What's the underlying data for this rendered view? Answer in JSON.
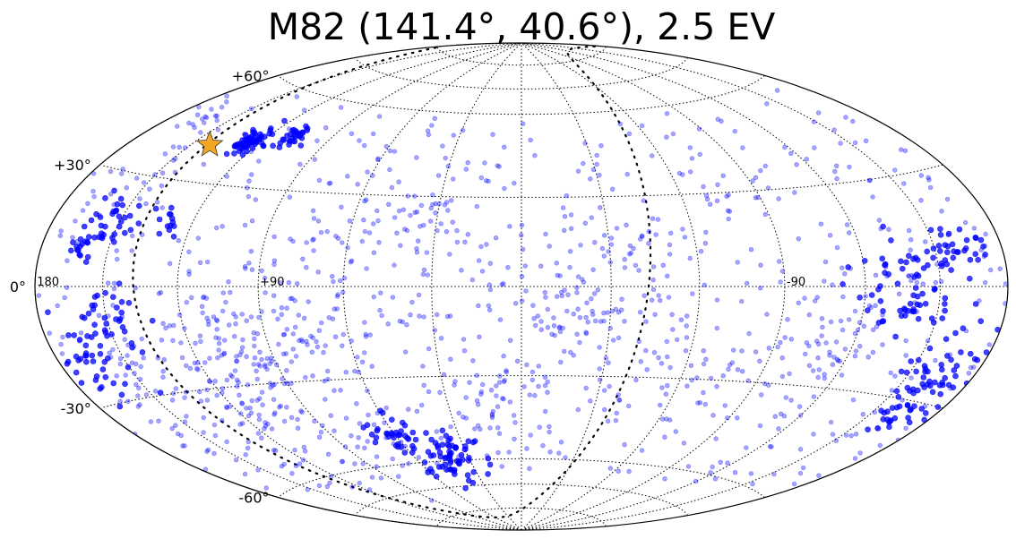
{
  "chart_data": {
    "type": "scatter",
    "projection": "hammer-aitoff (all-sky)",
    "title": "M82 (141.4°, 40.6°), 2.5 EV",
    "grid": true,
    "lat_tick_labels": [
      {
        "value": 60,
        "label": "+60°"
      },
      {
        "value": 30,
        "label": "+30°"
      },
      {
        "value": 0,
        "label": "0°"
      },
      {
        "value": -30,
        "label": "-30°"
      },
      {
        "value": -60,
        "label": "-60°"
      }
    ],
    "lon_tick_labels": [
      {
        "value": 180,
        "label": "180"
      },
      {
        "value": 90,
        "label": "+90"
      },
      {
        "value": -90,
        "label": "-90"
      }
    ],
    "point_color": "#0000ff",
    "marker": {
      "name": "M82",
      "lon": 141.4,
      "lat": 40.6,
      "color": "#f5a623",
      "shape": "star"
    },
    "galactic_plane": {
      "color": "#000000",
      "style": "dotted"
    },
    "clusters": [
      {
        "lon": 125,
        "lat": 43,
        "n": 60,
        "spread": 4,
        "dense": true
      },
      {
        "lon": 108,
        "lat": 46,
        "n": 30,
        "spread": 3,
        "dense": true
      },
      {
        "lon": 165,
        "lat": 46,
        "n": 15,
        "spread": 5,
        "dense": false
      },
      {
        "lon": 155,
        "lat": 18,
        "n": 35,
        "spread": 6,
        "dense": true
      },
      {
        "lon": 130,
        "lat": 18,
        "n": 12,
        "spread": 3,
        "dense": true
      },
      {
        "lon": 162,
        "lat": 10,
        "n": 15,
        "spread": 3,
        "dense": true
      },
      {
        "lon": 150,
        "lat": -10,
        "n": 40,
        "spread": 8,
        "dense": true
      },
      {
        "lon": 165,
        "lat": -20,
        "n": 30,
        "spread": 8,
        "dense": true
      },
      {
        "lon": 40,
        "lat": -60,
        "n": 60,
        "spread": 10,
        "dense": true
      },
      {
        "lon": 60,
        "lat": -50,
        "n": 40,
        "spread": 8,
        "dense": true
      },
      {
        "lon": -140,
        "lat": 0,
        "n": 70,
        "spread": 12,
        "dense": true
      },
      {
        "lon": -165,
        "lat": -25,
        "n": 50,
        "spread": 8,
        "dense": true
      },
      {
        "lon": -160,
        "lat": 10,
        "n": 30,
        "spread": 6,
        "dense": true
      },
      {
        "lon": -165,
        "lat": -35,
        "n": 20,
        "spread": 6,
        "dense": true
      },
      {
        "lon": -110,
        "lat": -20,
        "n": 50,
        "spread": 15,
        "dense": false
      },
      {
        "lon": -60,
        "lat": -30,
        "n": 40,
        "spread": 15,
        "dense": false
      },
      {
        "lon": 90,
        "lat": -15,
        "n": 120,
        "spread": 22,
        "dense": false
      },
      {
        "lon": 120,
        "lat": -35,
        "n": 120,
        "spread": 22,
        "dense": false
      },
      {
        "lon": 40,
        "lat": 20,
        "n": 40,
        "spread": 12,
        "dense": false
      },
      {
        "lon": -10,
        "lat": -10,
        "n": 60,
        "spread": 18,
        "dense": false
      },
      {
        "lon": -40,
        "lat": 10,
        "n": 40,
        "spread": 15,
        "dense": false
      },
      {
        "lon": 10,
        "lat": -40,
        "n": 40,
        "spread": 15,
        "dense": false
      }
    ],
    "background_points": 700
  }
}
